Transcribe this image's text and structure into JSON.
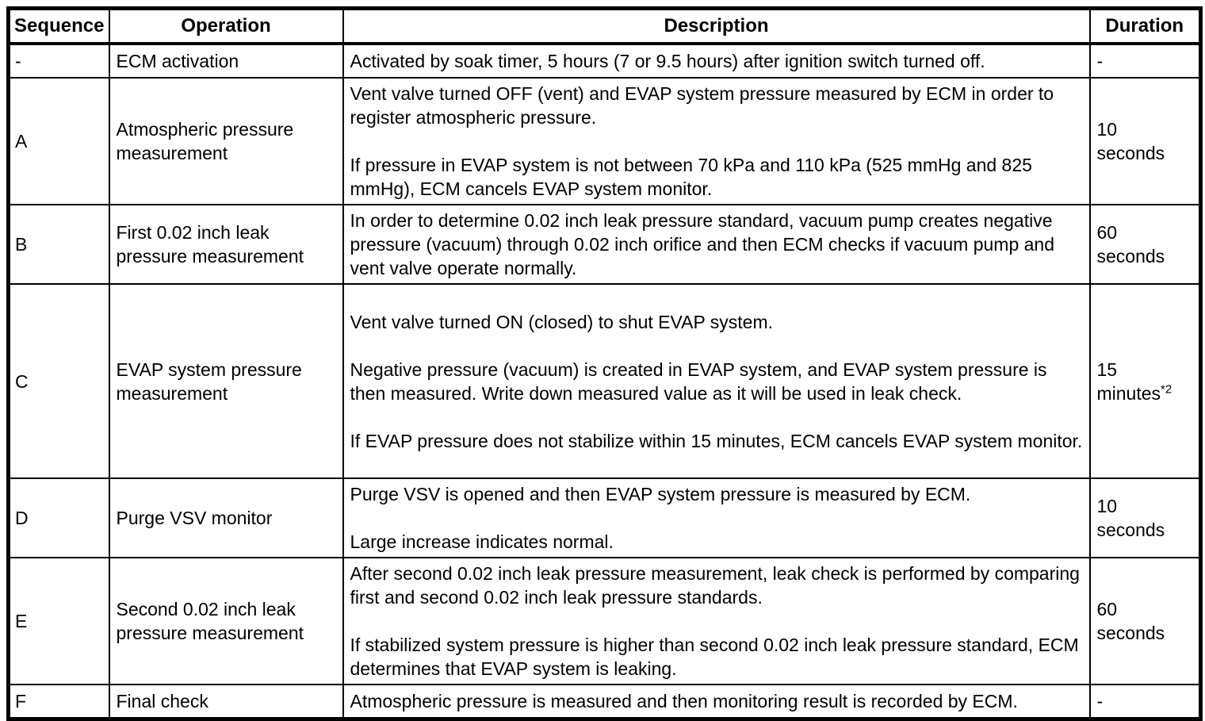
{
  "table": {
    "headers": {
      "sequence": "Sequence",
      "operation": "Operation",
      "description": "Description",
      "duration": "Duration"
    },
    "rows": [
      {
        "sequence": "-",
        "operation": "ECM activation",
        "description": [
          "Activated by soak timer, 5 hours (7 or 9.5 hours) after ignition switch turned off."
        ],
        "duration_lines": [
          "-"
        ],
        "duration_note": ""
      },
      {
        "sequence": "A",
        "operation": "Atmospheric pressure measurement",
        "description": [
          "Vent valve turned OFF (vent) and EVAP system pressure measured by ECM in order to register atmospheric pressure.",
          "If pressure in EVAP system is not between 70 kPa and 110 kPa (525 mmHg and 825 mmHg), ECM cancels EVAP system monitor."
        ],
        "duration_lines": [
          "10",
          "seconds"
        ],
        "duration_note": ""
      },
      {
        "sequence": "B",
        "operation": "First 0.02 inch leak pressure measurement",
        "description": [
          "In order to determine 0.02 inch leak pressure standard, vacuum pump creates negative pressure (vacuum) through 0.02 inch orifice and then ECM checks if vacuum pump and vent valve operate normally."
        ],
        "duration_lines": [
          "60",
          "seconds"
        ],
        "duration_note": ""
      },
      {
        "sequence": "C",
        "operation": "EVAP system pressure measurement",
        "description": [
          "Vent valve turned ON (closed) to shut EVAP system.",
          "Negative pressure (vacuum) is created in EVAP system, and EVAP system pressure is then measured. Write down measured value as it will be used in leak check.",
          "If EVAP pressure does not stabilize within 15 minutes, ECM cancels EVAP system monitor."
        ],
        "duration_lines": [
          "15",
          "minutes"
        ],
        "duration_note": "*2"
      },
      {
        "sequence": "D",
        "operation": "Purge VSV monitor",
        "description": [
          "Purge VSV is opened and then EVAP system pressure is measured by ECM.",
          "Large increase indicates normal."
        ],
        "duration_lines": [
          "10",
          "seconds"
        ],
        "duration_note": ""
      },
      {
        "sequence": "E",
        "operation": "Second 0.02 inch leak pressure measurement",
        "description": [
          "After second 0.02 inch leak pressure measurement, leak check is performed by comparing first and second 0.02 inch leak pressure standards.",
          "If stabilized system pressure is higher than second 0.02 inch leak pressure standard, ECM determines that EVAP system is leaking."
        ],
        "duration_lines": [
          "60",
          "seconds"
        ],
        "duration_note": ""
      },
      {
        "sequence": "F",
        "operation": "Final check",
        "description": [
          "Atmospheric pressure is measured and then monitoring result is recorded by ECM."
        ],
        "duration_lines": [
          "-"
        ],
        "duration_note": ""
      }
    ]
  }
}
